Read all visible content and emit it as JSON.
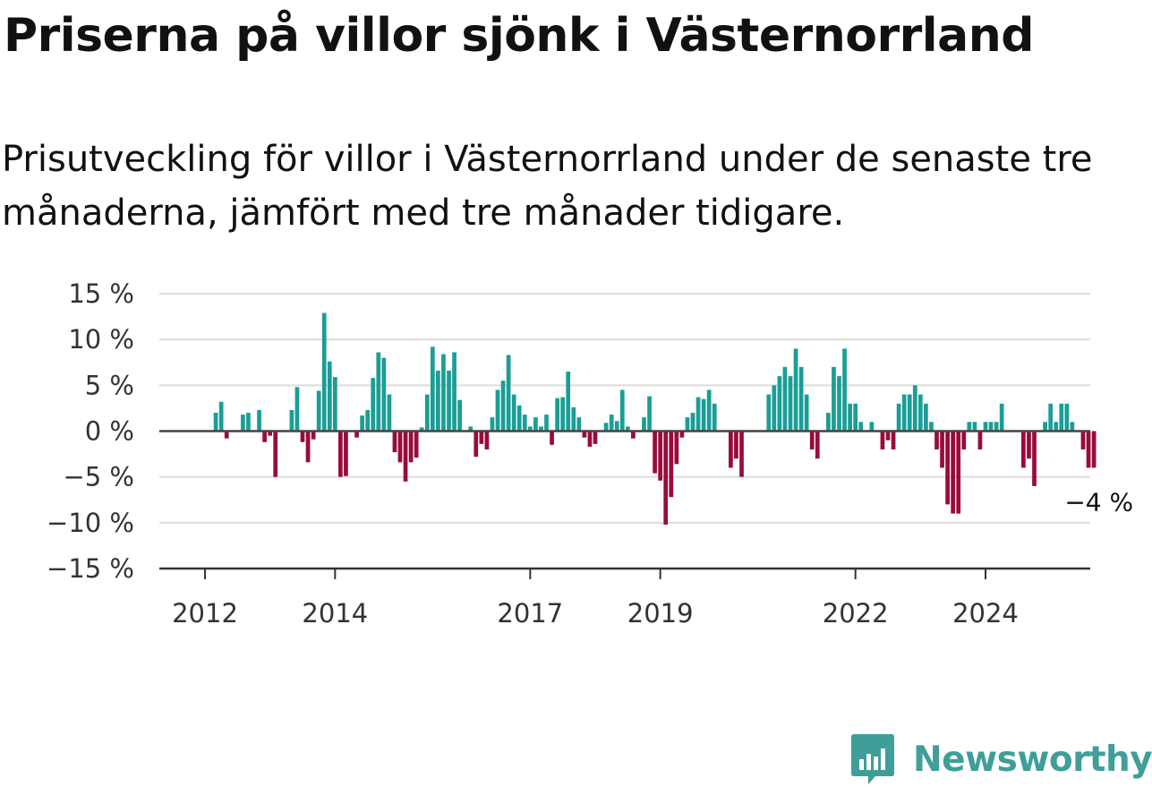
{
  "title": "Priserna på villor sjönk i Västernorrland",
  "subtitle": "Prisutveckling för villor i Västernorrland under de senaste tre månaderna, jämfört med tre månader tidigare.",
  "brand": {
    "name": "Newsworthy",
    "icon": "newsworthy-logo-icon",
    "color": "#3f9f98"
  },
  "chart_data": {
    "type": "bar",
    "title": "",
    "xlabel": "",
    "ylabel": "",
    "ylim": [
      -15,
      15
    ],
    "y_ticks": [
      15,
      10,
      5,
      0,
      -5,
      -10,
      -15
    ],
    "y_tick_labels": [
      "15 %",
      "10 %",
      "5 %",
      "0 %",
      "−5 %",
      "−10 %",
      "−15 %"
    ],
    "x_ticks": [
      2012,
      2014,
      2017,
      2019,
      2022,
      2024
    ],
    "x_tick_labels": [
      "2012",
      "2014",
      "2017",
      "2019",
      "2022",
      "2024"
    ],
    "start": "2011-07",
    "frequency": "monthly",
    "positive_color": "#1a9e96",
    "negative_color": "#990a3d",
    "grid": true,
    "end_label": "−4 %",
    "values": [
      0,
      0,
      0,
      0,
      0,
      0,
      0,
      0,
      2,
      3.2,
      -0.8,
      0,
      0,
      1.8,
      2,
      0,
      2.3,
      -1.2,
      -0.5,
      -5,
      0,
      0,
      2.3,
      4.8,
      -1.2,
      -3.4,
      -0.9,
      4.4,
      12.9,
      7.6,
      5.9,
      -5,
      -4.9,
      0,
      -0.7,
      1.7,
      2.3,
      5.8,
      8.6,
      8,
      4,
      -2.3,
      -3.4,
      -5.5,
      -3.4,
      -2.9,
      0.4,
      4,
      9.2,
      6.6,
      8.4,
      6.6,
      8.6,
      3.4,
      0,
      0.5,
      -2.8,
      -1.4,
      -2,
      1.5,
      4.5,
      5.5,
      8.3,
      4,
      2.8,
      1.8,
      0.5,
      1.5,
      0.5,
      1.8,
      -1.5,
      3.6,
      3.7,
      6.5,
      2.6,
      1.5,
      -0.7,
      -1.7,
      -1.4,
      0,
      0.9,
      1.8,
      1.1,
      4.5,
      0.5,
      -0.8,
      0,
      1.5,
      3.8,
      -4.6,
      -5.4,
      -10.2,
      -7.2,
      -3.6,
      -0.7,
      1.5,
      2,
      3.7,
      3.5,
      4.5,
      3,
      0,
      0,
      -4,
      -3,
      -5,
      0,
      0,
      0,
      0,
      4,
      5,
      6,
      7,
      6,
      9,
      7,
      4,
      -2,
      -3,
      0,
      2,
      7,
      6,
      9,
      3,
      3,
      1,
      0,
      1,
      0,
      -2,
      -1,
      -2,
      3,
      4,
      4,
      5,
      4,
      3,
      1,
      -2,
      -4,
      -8,
      -9,
      -9,
      -2,
      1,
      1,
      -2,
      1,
      1,
      1,
      3,
      0,
      0,
      0,
      -4,
      -3,
      -6,
      0,
      1,
      3,
      1,
      3,
      3,
      1,
      0,
      -2,
      -4,
      -4
    ]
  }
}
